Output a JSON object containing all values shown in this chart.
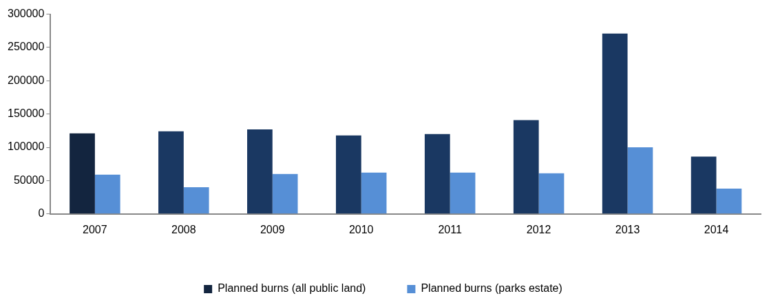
{
  "chart_data": {
    "type": "bar",
    "categories": [
      "2007",
      "2008",
      "2009",
      "2010",
      "2011",
      "2012",
      "2013",
      "2014"
    ],
    "series": [
      {
        "name": "Planned burns (all public land)",
        "color": "#1a3862",
        "colors": [
          "#13253f",
          "#1a3862",
          "#1a3862",
          "#1a3862",
          "#1a3862",
          "#1a3862",
          "#1a3862",
          "#1a3862"
        ],
        "values": [
          121000,
          124000,
          127000,
          118000,
          120000,
          141000,
          271000,
          86000
        ]
      },
      {
        "name": "Planned burns (parks estate)",
        "color": "#568fd6",
        "values": [
          59000,
          40000,
          60000,
          62000,
          62000,
          61000,
          100000,
          38000
        ]
      }
    ],
    "ylim": [
      0,
      300000
    ],
    "yticks": [
      0,
      50000,
      100000,
      150000,
      200000,
      250000,
      300000
    ],
    "grid": false,
    "legend": "bottom"
  }
}
